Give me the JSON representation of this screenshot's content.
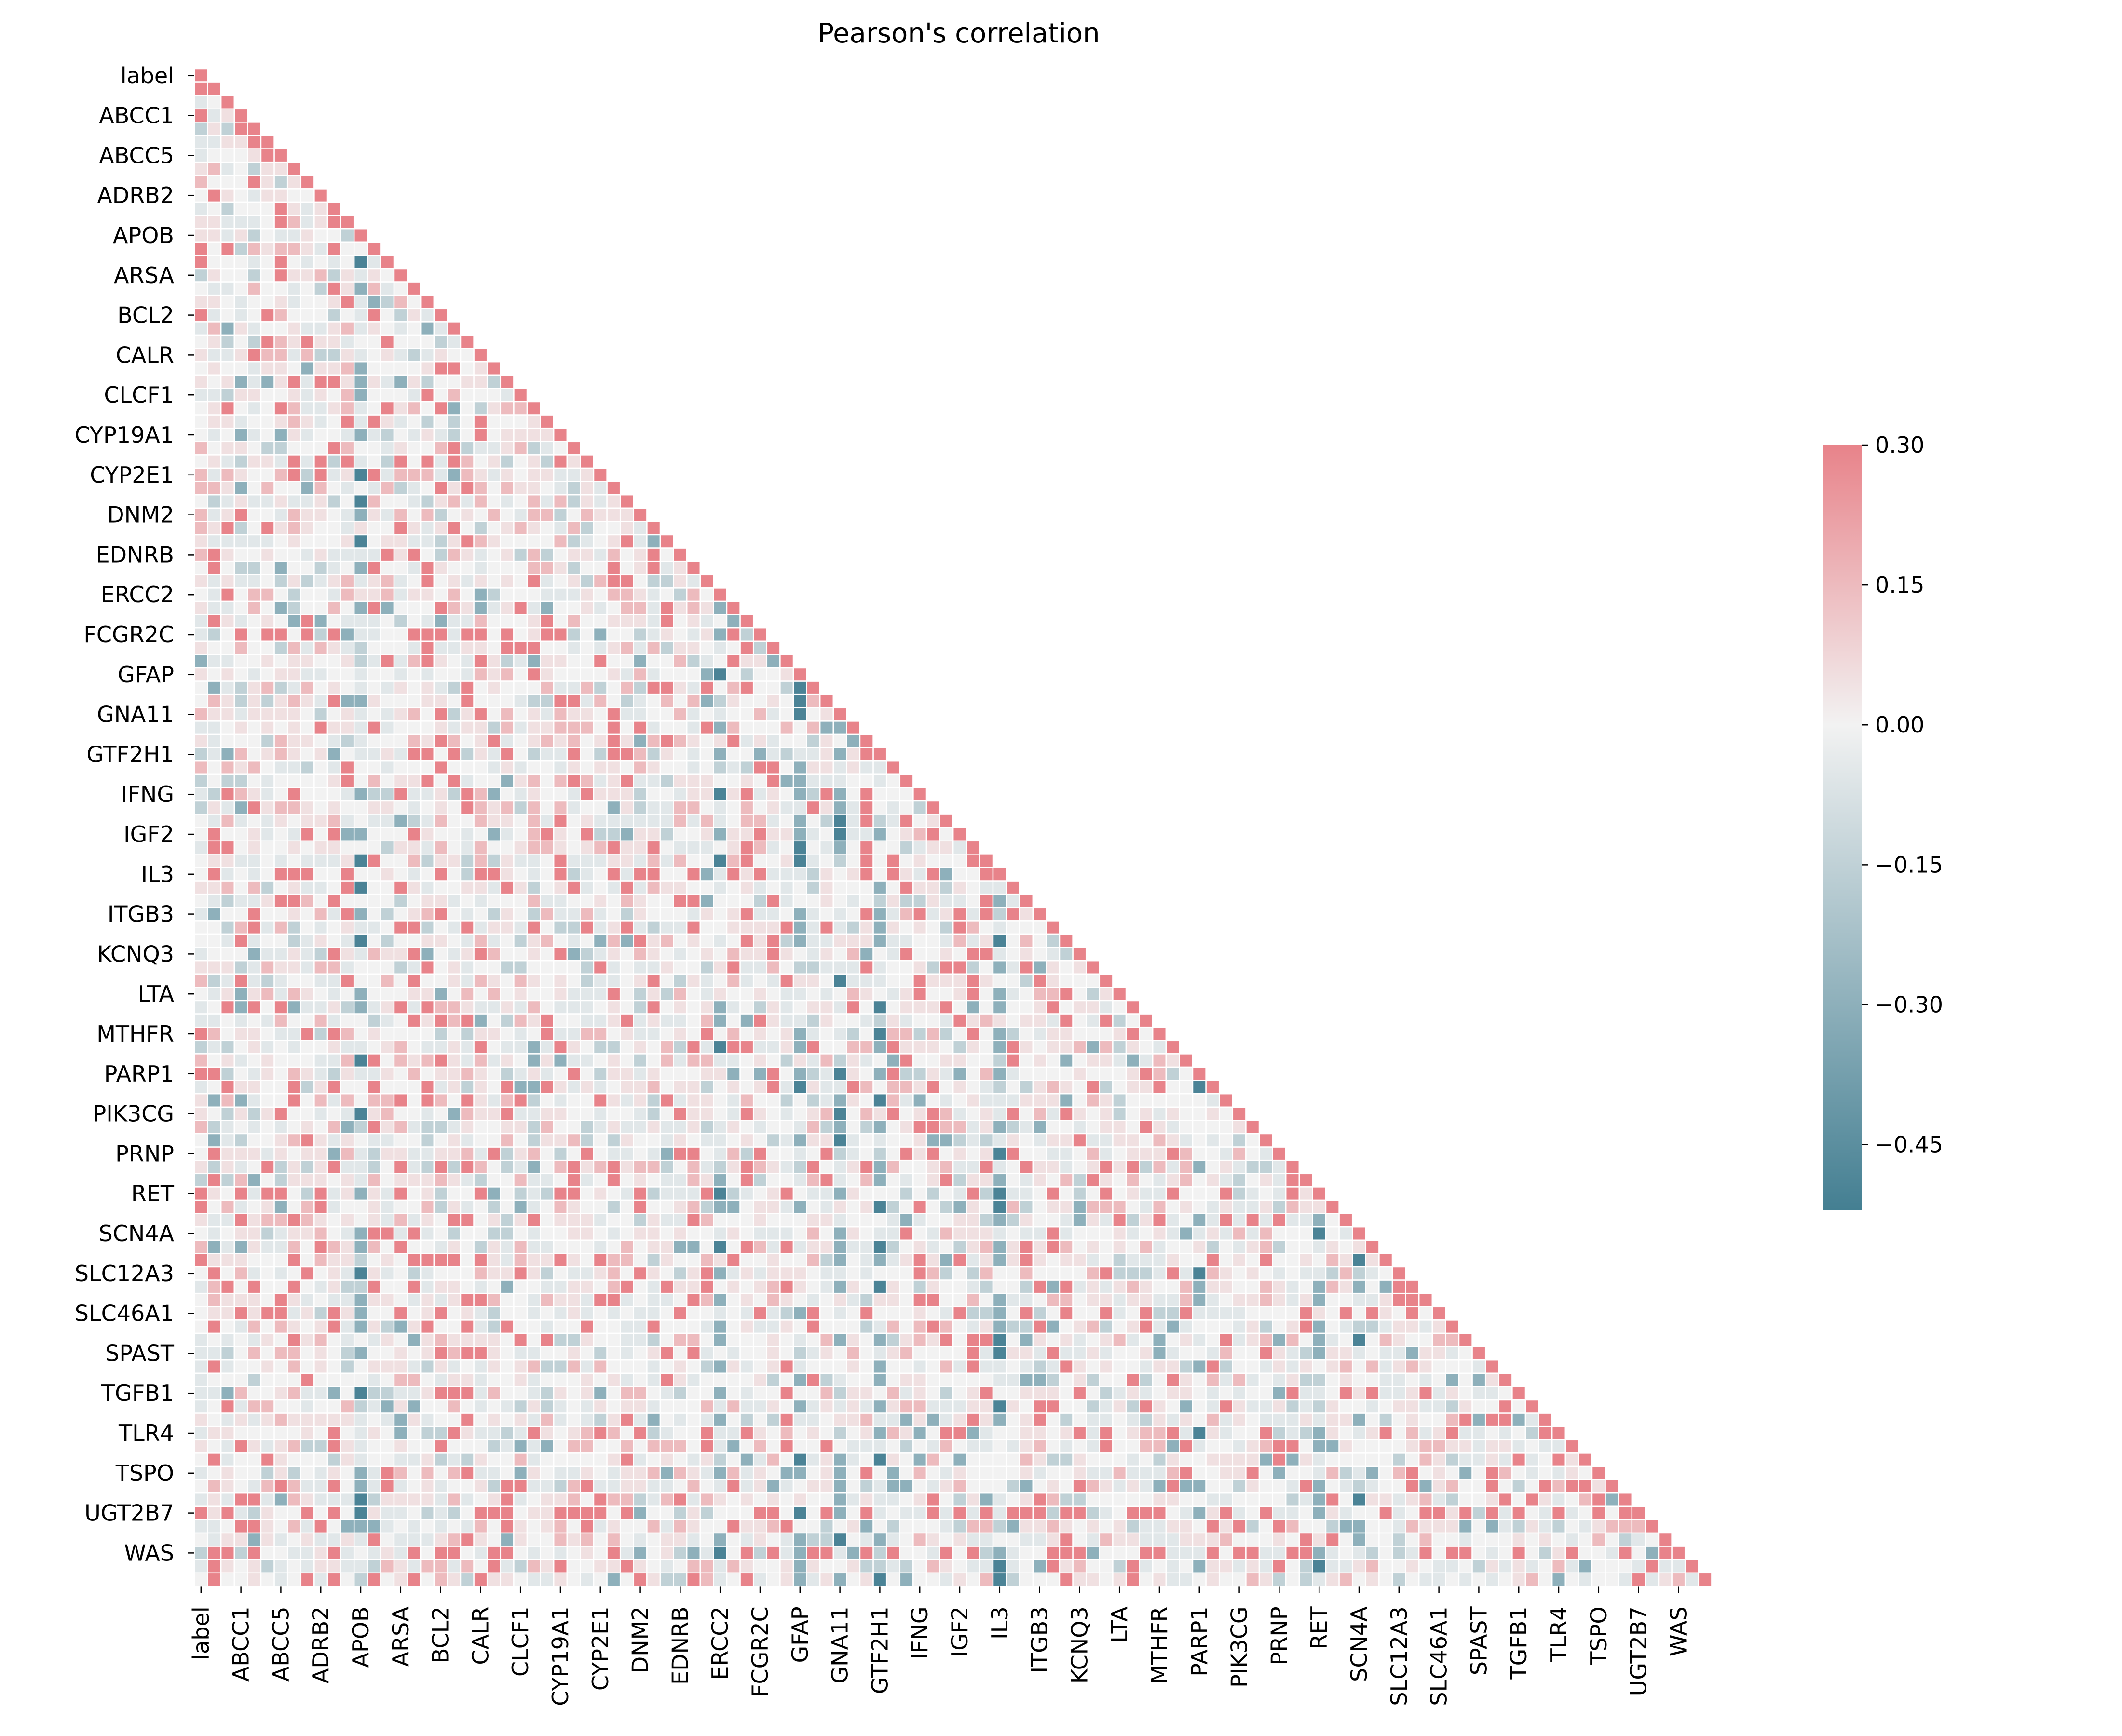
{
  "chart_data": {
    "type": "heatmap",
    "title": "Pearson's correlation",
    "mask": "upper-triangle",
    "row_count": 114,
    "tick_labels": [
      "label",
      "ABCC1",
      "ABCC5",
      "ADRB2",
      "APOB",
      "ARSA",
      "BCL2",
      "CALR",
      "CLCF1",
      "CYP19A1",
      "CYP2E1",
      "DNM2",
      "EDNRB",
      "ERCC2",
      "FCGR2C",
      "GFAP",
      "GNA11",
      "GTF2H1",
      "IFNG",
      "IGF2",
      "IL3",
      "ITGB3",
      "KCNQ3",
      "LTA",
      "MTHFR",
      "PARP1",
      "PIK3CG",
      "PRNP",
      "RET",
      "SCN4A",
      "SLC12A3",
      "SLC46A1",
      "SPAST",
      "TGFB1",
      "TLR4",
      "TSPO",
      "UGT2B7",
      "WAS"
    ],
    "tick_every": 3,
    "colorbar": {
      "vmin": -0.52,
      "vmax": 0.3,
      "ticks": [
        0.3,
        0.15,
        0.0,
        -0.15,
        -0.3,
        -0.45
      ],
      "tick_labels": [
        "0.30",
        "0.15",
        "0.00",
        "−0.15",
        "−0.30",
        "−0.45"
      ],
      "colors": {
        "low": "#447f92",
        "mid": "#f2f2f2",
        "high": "#e8838a"
      }
    },
    "value_range_note_levels": [
      0.3,
      0.15,
      0.05,
      0.0,
      -0.05,
      -0.15,
      -0.3,
      -0.5
    ],
    "strong_positive_rows": [
      "ABCC1",
      "ABCC5",
      "IL3",
      "FCGR2C",
      "RET",
      "SLC46A1",
      "UGT2B7",
      "WAS"
    ],
    "strong_negative_columns": [
      "APOB",
      "ERCC2",
      "GFAP",
      "GNA11",
      "GTF2H1",
      "IL3",
      "PARP1",
      "RET",
      "SCN4A",
      "SPAST"
    ]
  }
}
